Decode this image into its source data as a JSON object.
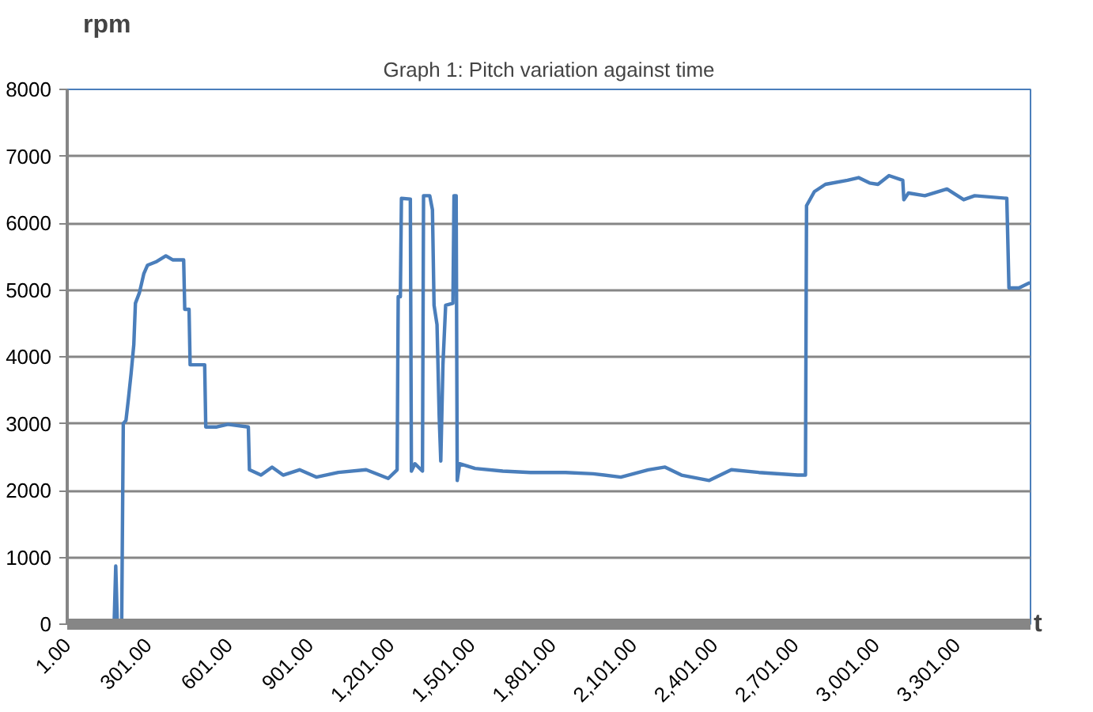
{
  "chart_data": {
    "type": "line",
    "title": "Graph 1: Pitch variation against time",
    "xlabel": "t",
    "ylabel": "rpm",
    "x": [
      1,
      175,
      181,
      187,
      203,
      209,
      219,
      228,
      238,
      248,
      254,
      269,
      285,
      299,
      330,
      367,
      392,
      433,
      437,
      453,
      457,
      511,
      515,
      556,
      597,
      673,
      677,
      720,
      761,
      802,
      863,
      925,
      1007,
      1110,
      1192,
      1225,
      1229,
      1237,
      1241,
      1274,
      1278,
      1291,
      1319,
      1323,
      1346,
      1356,
      1362,
      1373,
      1381,
      1387,
      1395,
      1405,
      1432,
      1436,
      1444,
      1448,
      1457,
      1514,
      1617,
      1720,
      1850,
      1952,
      2055,
      2157,
      2219,
      2280,
      2383,
      2465,
      2567,
      2711,
      2740,
      2744,
      2773,
      2814,
      2896,
      2937,
      2978,
      3009,
      3050,
      3101,
      3105,
      3122,
      3183,
      3265,
      3327,
      3368,
      3487,
      3495,
      3532,
      3573
    ],
    "series": [
      {
        "color": "#4a7ebb",
        "values": [
          0,
          0,
          870,
          0,
          0,
          3000,
          3050,
          3370,
          3750,
          4180,
          4800,
          4960,
          5240,
          5370,
          5420,
          5510,
          5450,
          5450,
          4710,
          4710,
          3880,
          3880,
          2950,
          2950,
          2990,
          2950,
          2310,
          2230,
          2350,
          2230,
          2310,
          2200,
          2270,
          2310,
          2180,
          2310,
          4900,
          4900,
          6370,
          6360,
          2290,
          2400,
          2290,
          6410,
          6410,
          6200,
          4770,
          4480,
          3120,
          2440,
          3880,
          4770,
          4800,
          6410,
          6410,
          2150,
          2400,
          2330,
          2290,
          2270,
          2270,
          2250,
          2200,
          2310,
          2350,
          2230,
          2150,
          2310,
          2270,
          2230,
          2230,
          6260,
          6470,
          6580,
          6640,
          6680,
          6600,
          6580,
          6710,
          6640,
          6350,
          6450,
          6410,
          6510,
          6350,
          6410,
          6370,
          5030,
          5030,
          5110
        ]
      }
    ],
    "xlim": [
      1,
      3575
    ],
    "xticks": [
      {
        "value": 1,
        "label": "1.00"
      },
      {
        "value": 301,
        "label": "301.00"
      },
      {
        "value": 601,
        "label": "601.00"
      },
      {
        "value": 901,
        "label": "901.00"
      },
      {
        "value": 1201,
        "label": "1,201.00"
      },
      {
        "value": 1501,
        "label": "1,501.00"
      },
      {
        "value": 1801,
        "label": "1,801.00"
      },
      {
        "value": 2101,
        "label": "2,101.00"
      },
      {
        "value": 2401,
        "label": "2,401.00"
      },
      {
        "value": 2701,
        "label": "2,701.00"
      },
      {
        "value": 3001,
        "label": "3,001.00"
      },
      {
        "value": 3301,
        "label": "3,301.00"
      }
    ],
    "ylim": [
      0,
      8000
    ],
    "yticks": [
      0,
      1000,
      2000,
      3000,
      4000,
      5000,
      6000,
      7000,
      8000
    ],
    "grid": "y",
    "marker": "none",
    "line_style": "solid"
  }
}
